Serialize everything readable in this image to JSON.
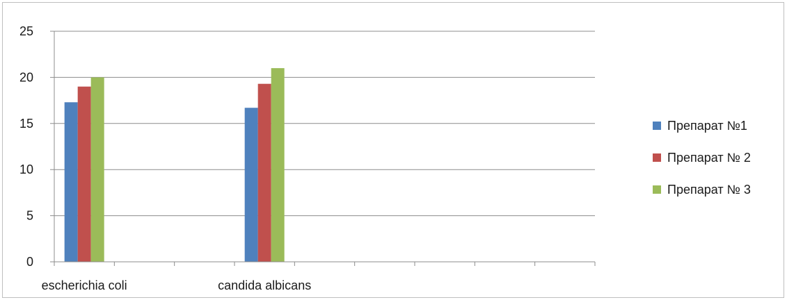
{
  "chart_data": {
    "type": "bar",
    "categories": [
      "escherichia coli",
      "",
      "",
      "candida albicans",
      "",
      "",
      "",
      "",
      ""
    ],
    "series": [
      {
        "name": "Препарат №1",
        "color": "#4f81bd",
        "values": [
          17.3,
          null,
          null,
          16.7,
          null,
          null,
          null,
          null,
          null
        ]
      },
      {
        "name": "Препарат № 2",
        "color": "#c0504d",
        "values": [
          19,
          null,
          null,
          19.3,
          null,
          null,
          null,
          null,
          null
        ]
      },
      {
        "name": "Препарат № 3",
        "color": "#9bbb59",
        "values": [
          20,
          null,
          null,
          21,
          null,
          null,
          null,
          null,
          null
        ]
      }
    ],
    "ylim": [
      0,
      25
    ],
    "yticks": [
      0,
      5,
      10,
      15,
      20,
      25
    ],
    "grid": true,
    "legend_position": "right"
  }
}
